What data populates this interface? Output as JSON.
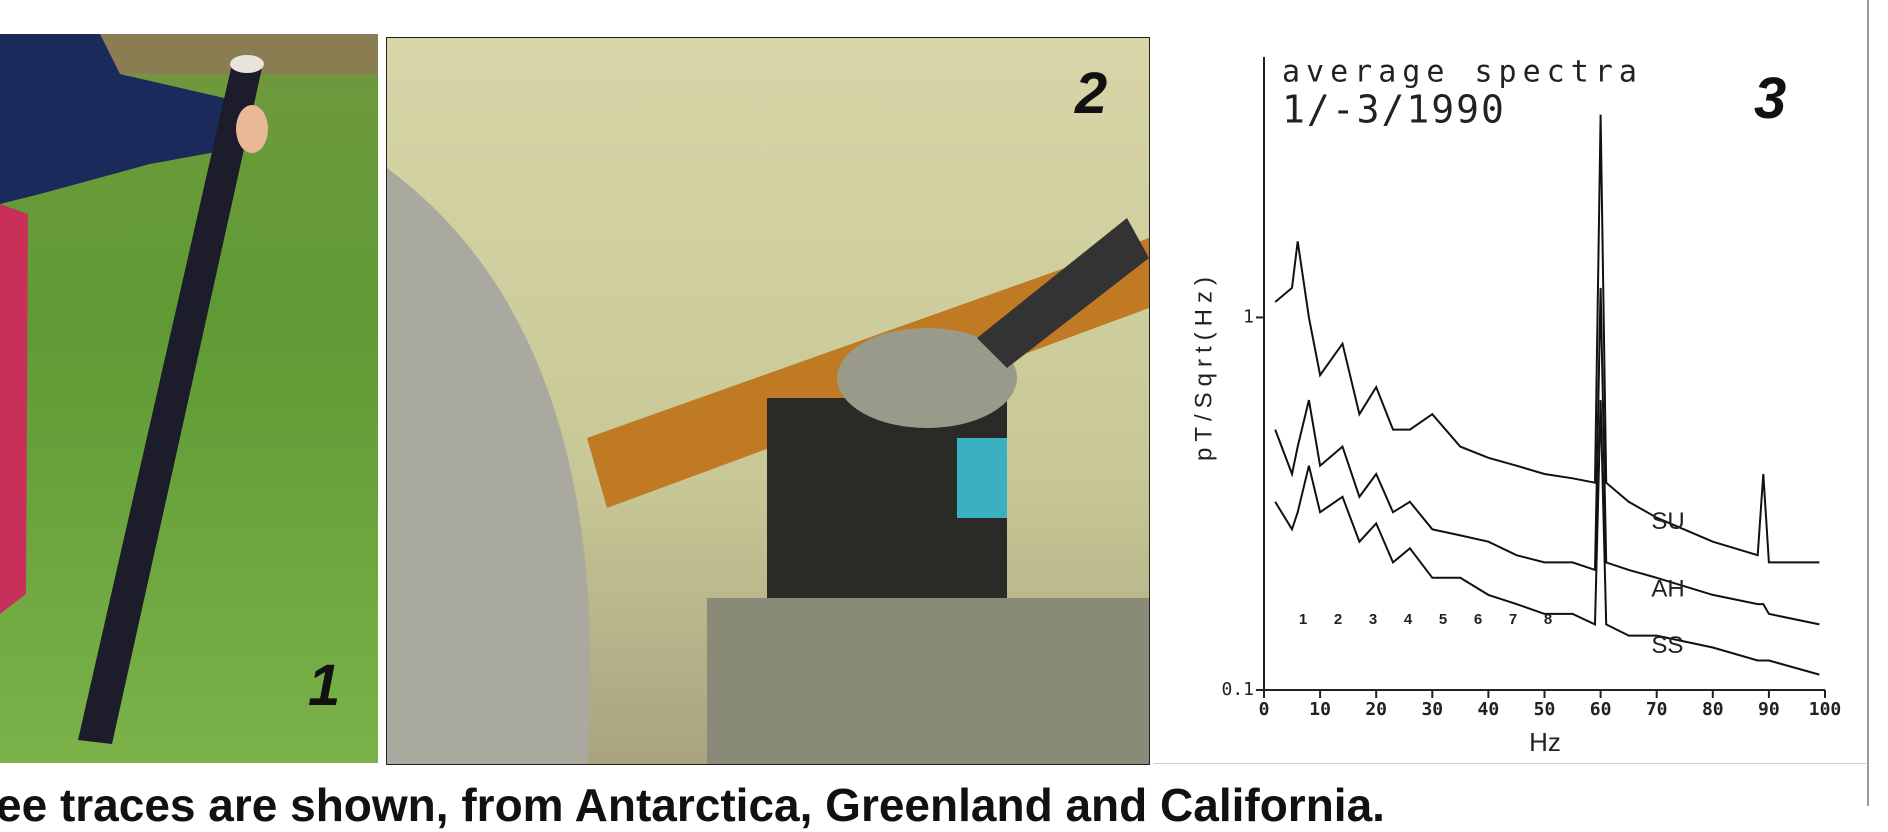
{
  "panels": [
    {
      "label": "1"
    },
    {
      "label": "2"
    },
    {
      "label": "3"
    }
  ],
  "chart_data": {
    "type": "line",
    "title": "average spectra",
    "subtitle": "1/-3/1990",
    "x_label": "Hz",
    "y_label": "pT/Sqrt(Hz)",
    "x": [
      2,
      5,
      6,
      8,
      10,
      14,
      17,
      20,
      23,
      26,
      30,
      35,
      40,
      45,
      50,
      55,
      59,
      60,
      61,
      65,
      70,
      80,
      88,
      89,
      90,
      99
    ],
    "series": [
      {
        "name": "SU",
        "color": "#111111",
        "values": [
          1.1,
          1.2,
          1.6,
          1.0,
          0.7,
          0.85,
          0.55,
          0.65,
          0.5,
          0.5,
          0.55,
          0.45,
          0.42,
          0.4,
          0.38,
          0.37,
          0.36,
          3.5,
          0.36,
          0.32,
          0.29,
          0.25,
          0.23,
          0.38,
          0.22,
          0.22
        ]
      },
      {
        "name": "AH",
        "color": "#111111",
        "values": [
          0.5,
          0.38,
          0.45,
          0.6,
          0.4,
          0.45,
          0.33,
          0.38,
          0.3,
          0.32,
          0.27,
          0.26,
          0.25,
          0.23,
          0.22,
          0.22,
          0.21,
          1.2,
          0.22,
          0.21,
          0.2,
          0.18,
          0.17,
          0.17,
          0.16,
          0.15
        ]
      },
      {
        "name": "SS",
        "color": "#111111",
        "values": [
          0.32,
          0.27,
          0.3,
          0.4,
          0.3,
          0.33,
          0.25,
          0.28,
          0.22,
          0.24,
          0.2,
          0.2,
          0.18,
          0.17,
          0.16,
          0.16,
          0.15,
          0.6,
          0.15,
          0.14,
          0.14,
          0.13,
          0.12,
          0.12,
          0.12,
          0.11
        ]
      }
    ],
    "xlim": [
      0,
      100
    ],
    "xticks": [
      0,
      10,
      20,
      30,
      40,
      50,
      60,
      70,
      80,
      90,
      100
    ],
    "ylim": [
      0.1,
      5
    ],
    "yticks": [
      0.1,
      1
    ],
    "ylog": true,
    "grid": false,
    "annotations": [
      "1",
      "2",
      "3",
      "4",
      "5",
      "6",
      "7",
      "8"
    ]
  },
  "caption": "ee traces are shown, from Antarctica, Greenland and California."
}
